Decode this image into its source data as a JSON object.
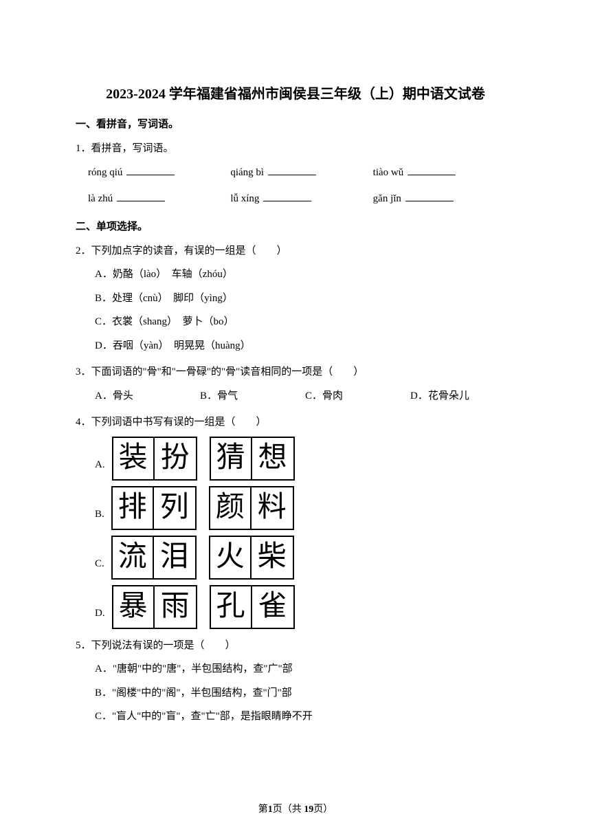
{
  "title": "2023-2024 学年福建省福州市闽侯县三年级（上）期中语文试卷",
  "section1": {
    "header": "一、看拼音，写词语。",
    "q1": {
      "num": "1．",
      "text": "看拼音，写词语。",
      "row1": [
        {
          "pinyin": "róng qiú"
        },
        {
          "pinyin": "qiáng bì"
        },
        {
          "pinyin": "tiào wǔ"
        }
      ],
      "row2": [
        {
          "pinyin": "là zhú"
        },
        {
          "pinyin": "lǚ xíng"
        },
        {
          "pinyin": "gǎn jǐn"
        }
      ]
    }
  },
  "section2": {
    "header": "二、单项选择。",
    "q2": {
      "num": "2．",
      "text": "下列加点字的读音，有误的一组是（　　）",
      "options": [
        {
          "letter": "A．",
          "text": "奶酪（lào）　车轴（zhóu）"
        },
        {
          "letter": "B．",
          "text": "处理（cnù）　脚印（yìng）"
        },
        {
          "letter": "C．",
          "text": "衣裳（shang）　萝卜（bo）"
        },
        {
          "letter": "D．",
          "text": "吞咽（yàn）　明晃晃（huàng）"
        }
      ]
    },
    "q3": {
      "num": "3．",
      "text": "下面词语的\"骨\"和\"一骨碌\"的\"骨\"读音相同的一项是（　　）",
      "options": [
        {
          "letter": "A．",
          "text": "骨头"
        },
        {
          "letter": "B．",
          "text": "骨气"
        },
        {
          "letter": "C．",
          "text": "骨肉"
        },
        {
          "letter": "D．",
          "text": "花骨朵儿"
        }
      ]
    },
    "q4": {
      "num": "4．",
      "text": "下列词语中书写有误的一组是（　　）",
      "options": [
        {
          "letter": "A.",
          "chars1": [
            "装",
            "扮"
          ],
          "chars2": [
            "猜",
            "想"
          ]
        },
        {
          "letter": "B.",
          "chars1": [
            "排",
            "列"
          ],
          "chars2": [
            "颜",
            "料"
          ]
        },
        {
          "letter": "C.",
          "chars1": [
            "流",
            "泪"
          ],
          "chars2": [
            "火",
            "柴"
          ]
        },
        {
          "letter": "D.",
          "chars1": [
            "暴",
            "雨"
          ],
          "chars2": [
            "孔",
            "雀"
          ]
        }
      ]
    },
    "q5": {
      "num": "5．",
      "text": "下列说法有误的一项是（　　）",
      "options": [
        {
          "letter": "A．",
          "text": "\"唐朝\"中的\"唐\"，半包围结构，查\"广\"部"
        },
        {
          "letter": "B．",
          "text": "\"阁楼\"中的\"阁\"，半包围结构，查\"门\"部"
        },
        {
          "letter": "C．",
          "text": "\"盲人\"中的\"盲\"，查\"亡\"部，是指眼睛睁不开"
        }
      ]
    }
  },
  "footer": {
    "prefix": "第",
    "current": "1",
    "mid": "页（共 ",
    "total": "19",
    "suffix": "页）"
  }
}
